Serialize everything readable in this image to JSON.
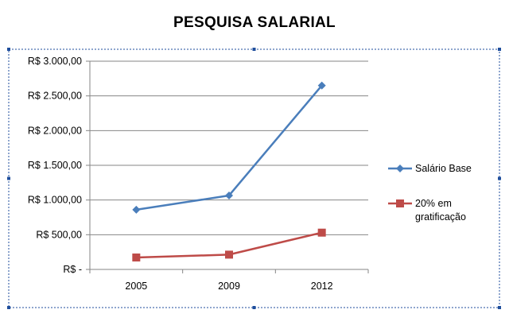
{
  "chart_data": {
    "type": "line",
    "title": "PESQUISA SALARIAL",
    "categories": [
      "2005",
      "2009",
      "2012"
    ],
    "series": [
      {
        "name": "Salário Base",
        "values": [
          860,
          1065,
          2650
        ],
        "color": "#4a7ebb",
        "marker": "diamond"
      },
      {
        "name": "20% em gratificação",
        "name_lines": [
          "20% em",
          "gratificação"
        ],
        "values": [
          172,
          213,
          530
        ],
        "color": "#be4b48",
        "marker": "square"
      }
    ],
    "yticks": [
      0,
      500,
      1000,
      1500,
      2000,
      2500,
      3000
    ],
    "ytick_labels": [
      "R$ -",
      "R$ 500,00",
      "R$ 1.000,00",
      "R$ 1.500,00",
      "R$ 2.000,00",
      "R$ 2.500,00",
      "R$ 3.000,00"
    ],
    "ylim": [
      0,
      3000
    ],
    "grid": true,
    "legend": "right",
    "frame_color": "#1f4e9c",
    "grid_color": "#868686"
  }
}
